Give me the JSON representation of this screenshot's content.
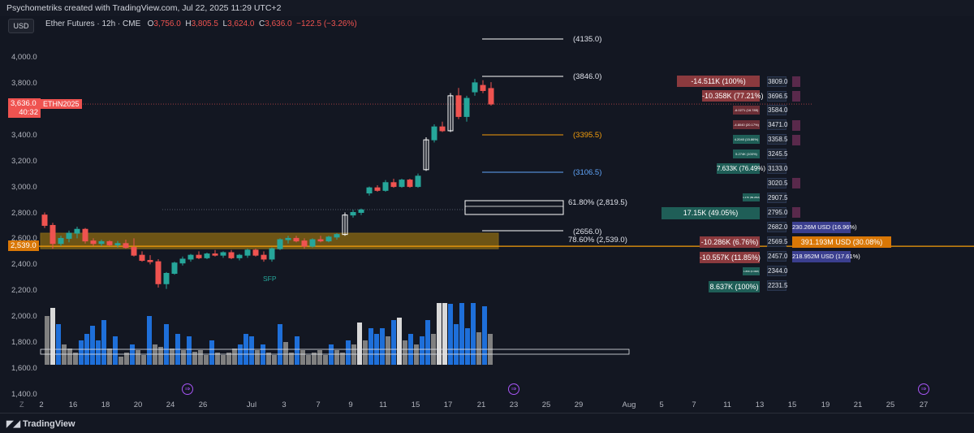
{
  "topbar": {
    "text": "Psychometriks created with TradingView.com, Jul 22, 2025 11:29 UTC+2"
  },
  "currency_button": "USD",
  "legend": {
    "symbol": "Ether Futures · 12h · CME",
    "open_label": "O",
    "open": "3,756.0",
    "high_label": "H",
    "high": "3,805.5",
    "low_label": "L",
    "low": "3,624.0",
    "close_label": "C",
    "close": "3,636.0",
    "change": "−122.5 (−3.26%)"
  },
  "price_axis": {
    "ticks": [
      "4,000.0",
      "3,800.0",
      "3,400.0",
      "3,200.0",
      "3,000.0",
      "2,800.0",
      "2,600.0",
      "2,400.0",
      "2,200.0",
      "2,000.0",
      "1,800.0",
      "1,600.0",
      "1,400.0"
    ]
  },
  "time_axis": {
    "ticks": [
      "Z",
      "2",
      "16",
      "18",
      "20",
      "24",
      "26",
      "Jul",
      "3",
      "7",
      "9",
      "11",
      "15",
      "17",
      "21",
      "23",
      "25",
      "29",
      "Aug",
      "5",
      "7",
      "11",
      "13",
      "15",
      "19",
      "21",
      "25",
      "27"
    ]
  },
  "current_price_tag": {
    "price": "3,636.0",
    "countdown": "40:32",
    "symbol": "ETHN2025"
  },
  "level_price_tag": "2,539.0",
  "horizontal_levels": [
    {
      "label": "(4135.0)",
      "color": "#ffffff"
    },
    {
      "label": "(3846.0)",
      "color": "#ffffff"
    },
    {
      "label": "(3395.5)",
      "color": "#f59e0b"
    },
    {
      "label": "(3106.5)",
      "color": "#60a5fa"
    },
    {
      "label": "61.80% (2,819.5)",
      "color": "#ffffff"
    },
    {
      "label": "(2656.0)",
      "color": "#ffffff"
    },
    {
      "label": "78.60% (2,539.0)",
      "color": "#ffffff"
    }
  ],
  "sfp_label": "SFP",
  "positions_left": [
    {
      "text": "-14.511K (100%)",
      "color": "#8b3a3e"
    },
    {
      "text": "-10.358K (77.21%)",
      "color": "#8b3a3e"
    },
    {
      "text": "-6.0271 (16.785)",
      "color": "#6b2e36"
    },
    {
      "text": "-4.8040 (20.17%)",
      "color": "#6b2e36"
    },
    {
      "text": "4.2040 (15.86%)",
      "color": "#1f5e57"
    },
    {
      "text": "5.274K (100%)",
      "color": "#1f5e57"
    },
    {
      "text": "7.633K (76.49%)",
      "color": "#1f5e57"
    },
    {
      "text": "1.17K (89.26M)",
      "color": "#1f5e57"
    },
    {
      "text": "17.15K (49.05%)",
      "color": "#1f5e57"
    },
    {
      "text": "-10.286K (6.76%)",
      "color": "#8b3a3e"
    },
    {
      "text": "-10.557K (11.85%)",
      "color": "#8b3a3e"
    },
    {
      "text": "1.89K (0.30M)",
      "color": "#1f5e57"
    },
    {
      "text": "8.637K (100%)",
      "color": "#1f5e57"
    }
  ],
  "price_levels": [
    "3809.0",
    "3696.5",
    "3584.0",
    "3471.0",
    "3358.5",
    "3245.5",
    "3133.0",
    "3020.5",
    "2907.5",
    "2795.0",
    "2682.0",
    "2569.5",
    "2457.0",
    "2344.0",
    "2231.5"
  ],
  "positions_right": [
    {
      "text": "230.26M USD (16.96%)",
      "color": "#3b3f8f"
    },
    {
      "text": "391.193M USD (30.08%)",
      "color": "#d97706"
    },
    {
      "text": "218.952M USD (17.61%)",
      "color": "#3b3f8f"
    }
  ],
  "footer": {
    "logo": "TradingView"
  },
  "colors": {
    "up": "#26a69a",
    "down": "#ef5350",
    "volume_blue": "#1e6fd9",
    "volume_grey": "#808080",
    "volume_white": "#d9d9d9",
    "zone": "#b8860b"
  }
}
